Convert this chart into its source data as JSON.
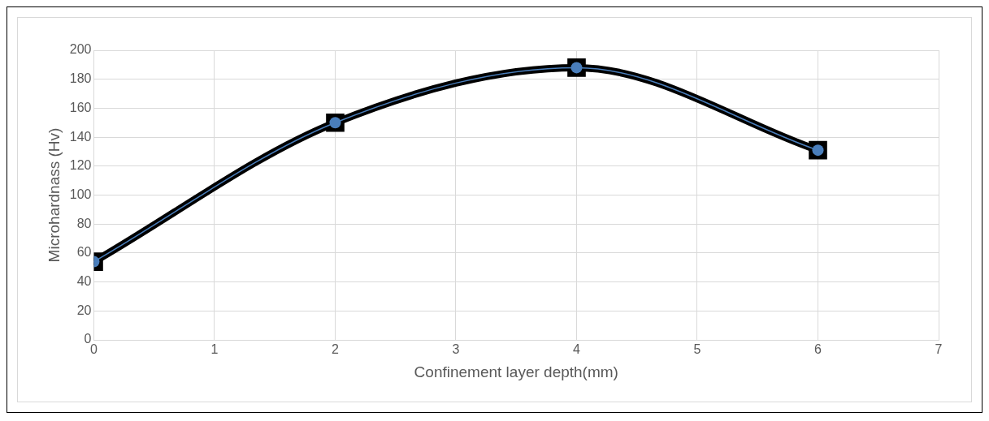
{
  "chart_data": {
    "type": "line",
    "xlabel": "Confinement layer depth(mm)",
    "ylabel": "Microhardnass (Hv)",
    "x": [
      0,
      2,
      4,
      6
    ],
    "series": [
      {
        "color": "#000000",
        "values": [
          54,
          150,
          188,
          131
        ],
        "marker": "square"
      },
      {
        "color": "#4a7ebb",
        "values": [
          54,
          150,
          188,
          131
        ],
        "marker": "circle"
      }
    ],
    "xlim": [
      0,
      7
    ],
    "xticks": [
      0,
      1,
      2,
      3,
      4,
      5,
      6,
      7
    ],
    "ylim": [
      0,
      200
    ],
    "yticks": [
      0,
      20,
      40,
      60,
      80,
      100,
      120,
      140,
      160,
      180,
      200
    ],
    "grid": true,
    "legend": false
  }
}
